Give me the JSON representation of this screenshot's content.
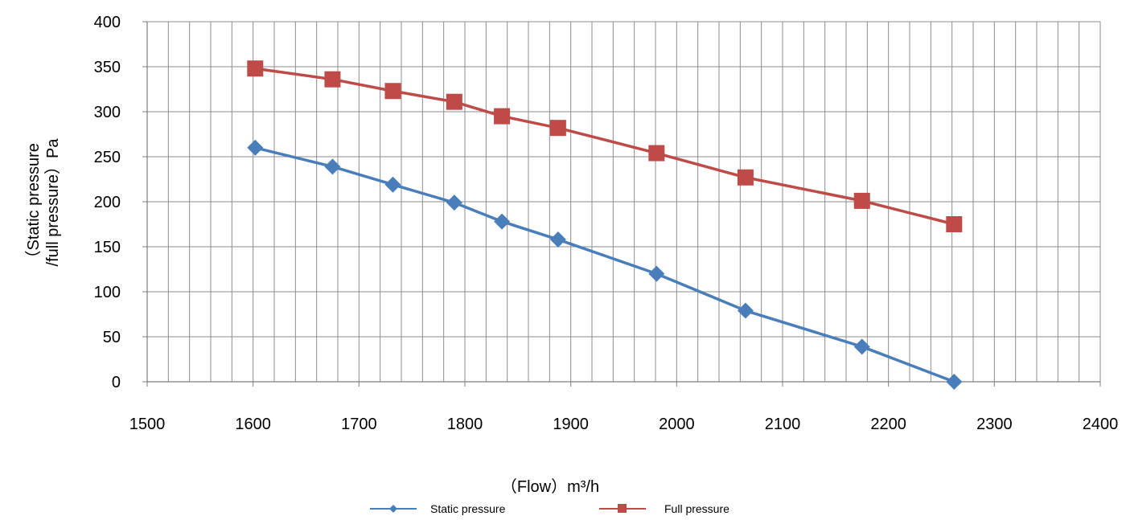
{
  "chart_data": {
    "type": "line",
    "title": "",
    "xlabel": "（Flow）m³/h",
    "ylabel_lines": [
      "（Static pressure",
      "/full pressure）Pa"
    ],
    "xlim": [
      1500,
      2400
    ],
    "ylim": [
      0,
      400
    ],
    "x_ticks": [
      1500,
      1600,
      1700,
      1800,
      1900,
      2000,
      2100,
      2200,
      2300,
      2400
    ],
    "y_ticks": [
      0,
      50,
      100,
      150,
      200,
      250,
      300,
      350,
      400
    ],
    "x_minor_step": 20,
    "y_minor_step": 50,
    "grid": true,
    "legend_position": "bottom",
    "series": [
      {
        "name": "Static pressure",
        "color": "#4a7ebb",
        "marker": "diamond",
        "x": [
          1602,
          1675,
          1732,
          1790,
          1835,
          1888,
          1981,
          2065,
          2175,
          2262
        ],
        "y": [
          260,
          239,
          219,
          199,
          178,
          158,
          120,
          79,
          39,
          0
        ]
      },
      {
        "name": "Full pressure",
        "color": "#be4b48",
        "marker": "square",
        "x": [
          1602,
          1675,
          1732,
          1790,
          1835,
          1888,
          1981,
          2065,
          2175,
          2262
        ],
        "y": [
          348,
          336,
          323,
          311,
          295,
          282,
          254,
          227,
          201,
          175
        ]
      }
    ]
  }
}
